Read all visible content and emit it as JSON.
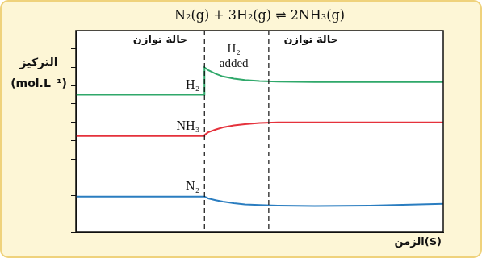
{
  "chart_data": {
    "type": "line",
    "title": "N₂(g) + 3H₂(g) ⇌ 2NH₃(g)",
    "y_label": "التركيز (mol.L⁻¹)",
    "x_label": "الزمن(S)",
    "x": [
      0,
      3.5,
      3.5,
      3.6,
      3.8,
      4.0,
      4.3,
      4.6,
      5.0,
      5.5,
      6.5,
      8,
      10
    ],
    "series": [
      {
        "name": "H₂",
        "color": "#2fa86a",
        "line_style": "solid",
        "marker": "none",
        "values": [
          7.5,
          7.5,
          9.0,
          8.85,
          8.65,
          8.5,
          8.38,
          8.3,
          8.25,
          8.22,
          8.2,
          8.2,
          8.2
        ]
      },
      {
        "name": "NH₃",
        "color": "#e5323c",
        "line_style": "solid",
        "marker": "none",
        "values": [
          5.25,
          5.25,
          5.3,
          5.45,
          5.6,
          5.72,
          5.83,
          5.9,
          5.96,
          5.99,
          6.0,
          6.0,
          6.0
        ]
      },
      {
        "name": "N₂",
        "color": "#2a7dc0",
        "line_style": "solid",
        "marker": "none",
        "values": [
          1.95,
          1.95,
          1.95,
          1.85,
          1.75,
          1.67,
          1.58,
          1.52,
          1.48,
          1.45,
          1.43,
          1.45,
          1.55
        ]
      }
    ],
    "xlim": [
      0,
      10
    ],
    "ylim": [
      0,
      11
    ],
    "yticks": [
      0,
      1,
      2,
      3,
      4,
      5,
      6,
      7,
      8,
      9,
      10,
      11
    ],
    "grid": false,
    "tick_labels": false,
    "vlines": [
      {
        "x": 3.5,
        "line_style": "dashed"
      },
      {
        "x": 5.25,
        "line_style": "dashed"
      }
    ],
    "annotations": [
      {
        "text": [
          "حالة توازن"
        ],
        "x": 2.3,
        "y": 10.5
      },
      {
        "text": [
          "حالة توازن"
        ],
        "x": 6.4,
        "y": 10.5
      },
      {
        "text": [
          "H₂",
          "added"
        ],
        "x": 4.3,
        "y": 10.0
      }
    ]
  }
}
